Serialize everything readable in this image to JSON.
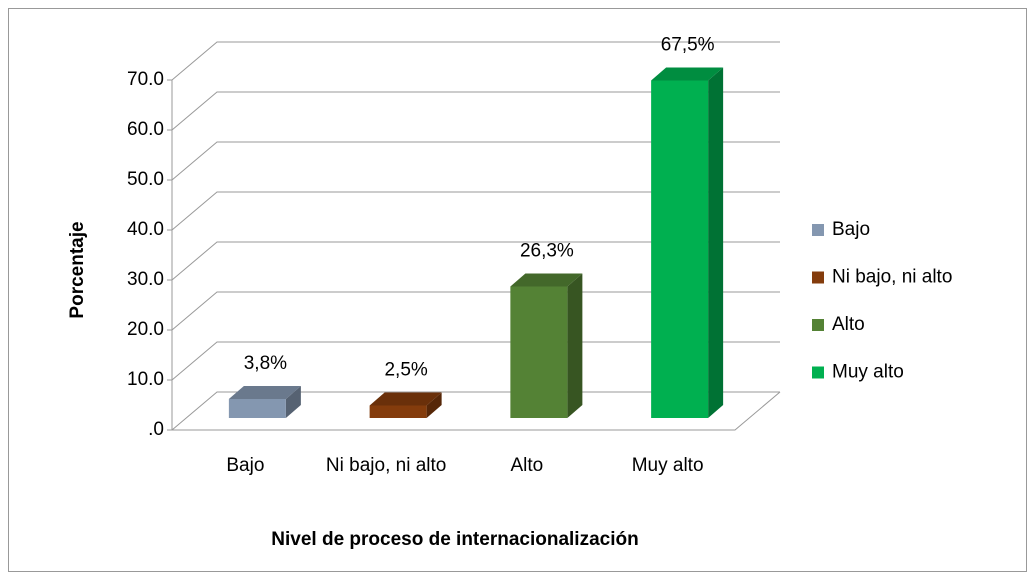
{
  "chart_data": {
    "type": "bar3d",
    "categories": [
      "Bajo",
      "Ni bajo, ni alto",
      "Alto",
      "Muy alto"
    ],
    "values": [
      3.8,
      2.5,
      26.3,
      67.5
    ],
    "value_labels": [
      "3,8%",
      "2,5%",
      "26,3%",
      "67,5%"
    ],
    "colors": [
      "#8497b0",
      "#843c0c",
      "#548235",
      "#00b050"
    ],
    "ylim": [
      0,
      70
    ],
    "yticks": [
      {
        "value": 0,
        "label": ".0"
      },
      {
        "value": 10,
        "label": "10.0"
      },
      {
        "value": 20,
        "label": "20.0"
      },
      {
        "value": 30,
        "label": "30.0"
      },
      {
        "value": 40,
        "label": "40.0"
      },
      {
        "value": 50,
        "label": "50.0"
      },
      {
        "value": 60,
        "label": "60.0"
      },
      {
        "value": 70,
        "label": "70.0"
      }
    ],
    "ylabel": "Porcentaje",
    "xlabel": "Nivel de proceso de internacionalización",
    "grid": true,
    "legend": "right"
  }
}
